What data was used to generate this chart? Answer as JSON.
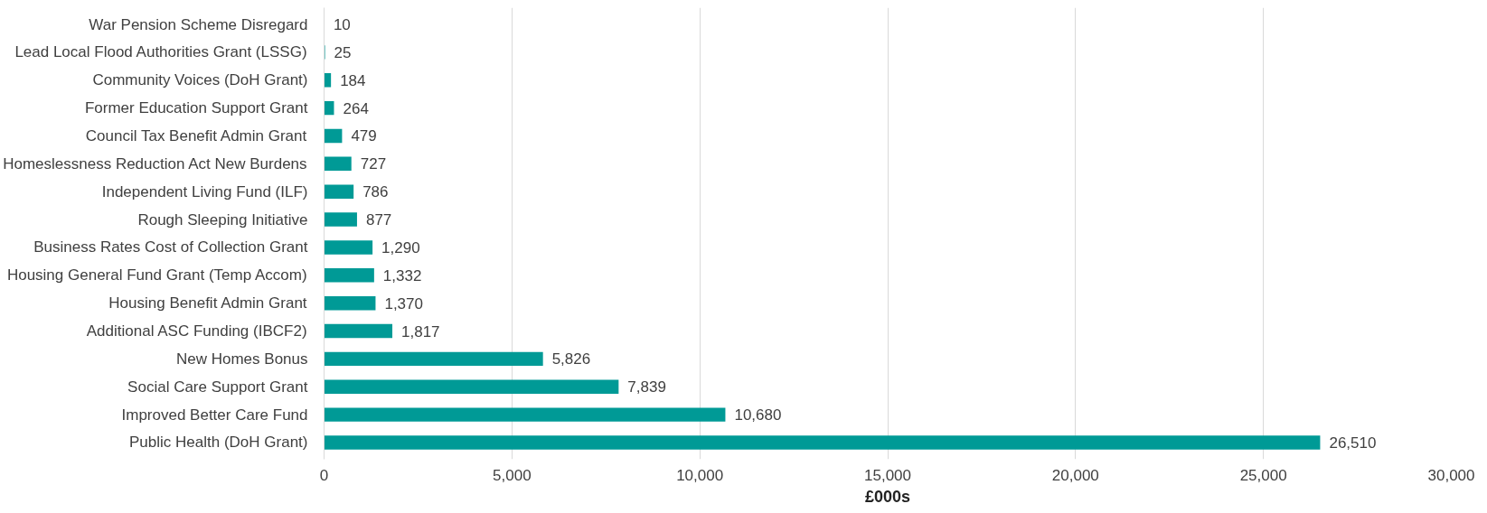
{
  "chart_data": {
    "type": "bar",
    "orientation": "horizontal",
    "xlabel": "£000s",
    "categories": [
      "War Pension Scheme Disregard",
      "Lead Local Flood Authorities Grant (LSSG)",
      "Community Voices (DoH Grant)",
      "Former Education Support Grant",
      "Council Tax Benefit Admin Grant",
      "Homeslessness Reduction Act New Burdens",
      "Independent Living Fund (ILF)",
      "Rough Sleeping Initiative",
      "Business Rates Cost of Collection Grant",
      "Housing General Fund Grant (Temp Accom)",
      "Housing Benefit Admin Grant",
      "Additional ASC Funding (IBCF2)",
      "New Homes Bonus",
      "Social Care Support Grant",
      "Improved Better Care Fund",
      "Public Health (DoH Grant)"
    ],
    "values": [
      10,
      25,
      184,
      264,
      479,
      727,
      786,
      877,
      1290,
      1332,
      1370,
      1817,
      5826,
      7839,
      10680,
      26510
    ],
    "value_labels": [
      "10",
      "25",
      "184",
      "264",
      "479",
      "727",
      "786",
      "877",
      "1,290",
      "1,332",
      "1,370",
      "1,817",
      "5,826",
      "7,839",
      "10,680",
      "26,510"
    ],
    "color": "#009a96",
    "xlim": [
      0,
      30000
    ],
    "xticks": [
      {
        "value": 0,
        "label": "0"
      },
      {
        "value": 5000,
        "label": "5,000"
      },
      {
        "value": 10000,
        "label": "10,000"
      },
      {
        "value": 15000,
        "label": "15,000"
      },
      {
        "value": 20000,
        "label": "20,000"
      },
      {
        "value": 25000,
        "label": "25,000"
      },
      {
        "value": 30000,
        "label": "30,000"
      }
    ],
    "grid": "x"
  }
}
